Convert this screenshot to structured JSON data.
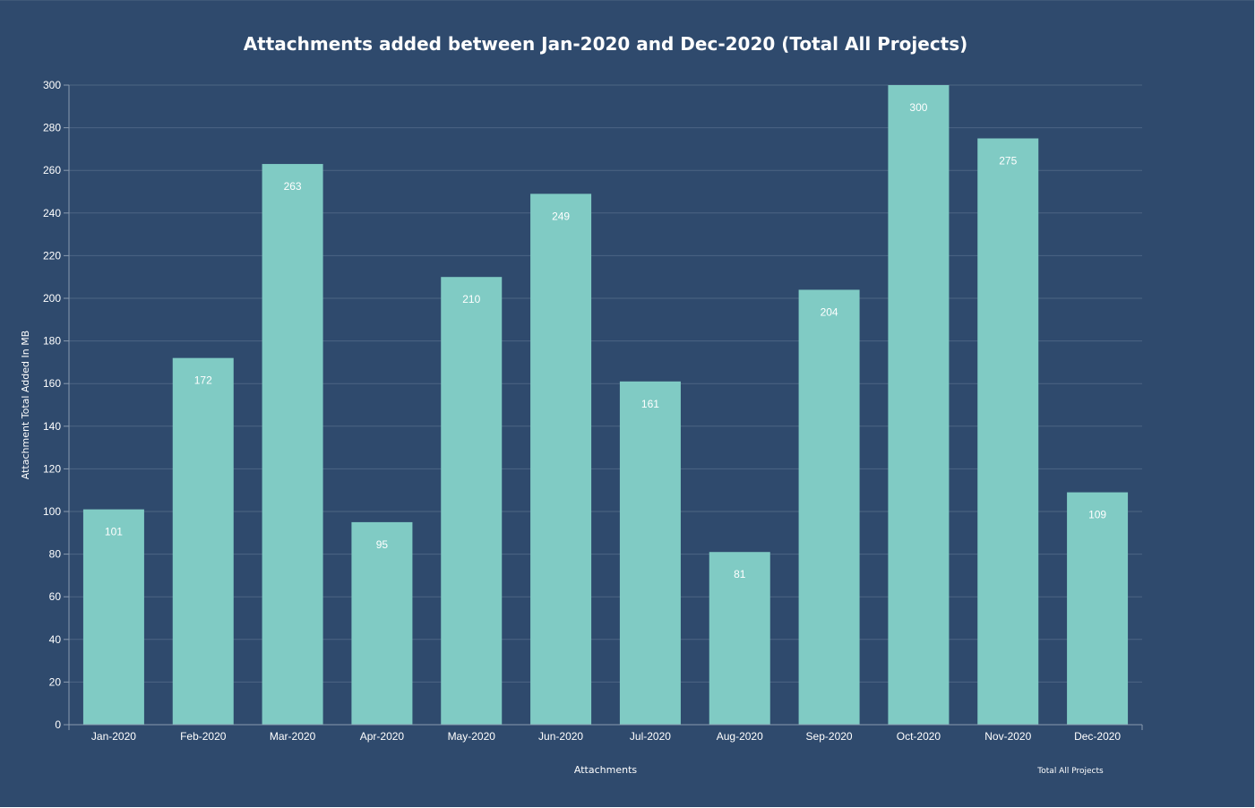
{
  "colors": {
    "background": "#2f4a6d",
    "bar": "#80cbc4",
    "text": "#ffffff",
    "grid": "#4d6584"
  },
  "chart_data": {
    "type": "bar",
    "title": "Attachments added between Jan-2020 and Dec-2020 (Total All Projects)",
    "xlabel": "Attachments",
    "ylabel": "Attachment Total Added In MB",
    "legend": {
      "label": "Total All Projects",
      "placement": "bottom-right"
    },
    "grid": true,
    "ylim": [
      0,
      300
    ],
    "yticks": [
      0,
      20,
      40,
      60,
      80,
      100,
      120,
      140,
      160,
      180,
      200,
      220,
      240,
      260,
      280,
      300
    ],
    "categories": [
      "Jan-2020",
      "Feb-2020",
      "Mar-2020",
      "Apr-2020",
      "May-2020",
      "Jun-2020",
      "Jul-2020",
      "Aug-2020",
      "Sep-2020",
      "Oct-2020",
      "Nov-2020",
      "Dec-2020"
    ],
    "series": [
      {
        "name": "Total All Projects",
        "values": [
          101,
          172,
          263,
          95,
          210,
          249,
          161,
          81,
          204,
          300,
          275,
          109
        ]
      }
    ]
  }
}
